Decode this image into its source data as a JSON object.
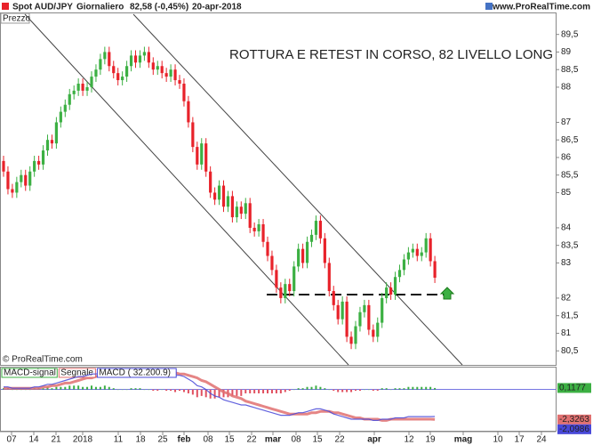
{
  "header": {
    "instrument": "Spot AUD/JPY",
    "period": "Giornaliero",
    "last": "82,58 (-0,45%)",
    "date": "20-apr-2018",
    "site": "www.ProRealTime.com",
    "copyright": "© ProRealTime.com"
  },
  "chart_data": [
    {
      "type": "candlestick",
      "label": "Prezzo",
      "annotation": "ROTTURA E RETEST IN CORSO, 82 LIVELLO LONG",
      "up_color": "#3cb043",
      "down_color": "#e8222a",
      "ylim": [
        80.1,
        90.1
      ],
      "yticks": [
        {
          "value": 80.5,
          "label": "80,5"
        },
        81,
        {
          "value": 81.5,
          "label": "81,5"
        },
        82,
        83,
        {
          "value": 83.5,
          "label": "83,5"
        },
        84,
        85,
        {
          "value": 85.5,
          "label": "85,5"
        },
        86,
        {
          "value": 86.5,
          "label": "86,5"
        },
        87,
        88,
        {
          "value": 88.5,
          "label": "88,5"
        },
        89,
        {
          "value": 89.5,
          "label": "89,5"
        }
      ],
      "xtick_labels": [
        "07",
        "14",
        "21",
        "2018",
        "11",
        "18",
        "25",
        "feb",
        "08",
        "15",
        "22",
        "mar",
        "08",
        "15",
        "22",
        "apr",
        "12",
        "19",
        "mag",
        "10",
        "17",
        "24"
      ],
      "open": [
        85.9,
        85.6,
        85.1,
        85.0,
        85.3,
        85.5,
        85.2,
        85.6,
        85.9,
        85.8,
        86.2,
        86.5,
        86.4,
        87.0,
        87.3,
        87.5,
        87.8,
        87.9,
        88.1,
        87.9,
        88.0,
        88.3,
        88.5,
        88.8,
        89.0,
        88.6,
        88.4,
        88.2,
        88.3,
        88.6,
        88.9,
        88.7,
        88.9,
        89.0,
        88.7,
        88.5,
        88.6,
        88.4,
        88.3,
        88.5,
        88.2,
        88.1,
        87.6,
        87.0,
        86.3,
        85.8,
        86.4,
        85.6,
        85.0,
        84.8,
        85.2,
        84.6,
        84.9,
        84.3,
        84.6,
        84.4,
        84.7,
        84.0,
        83.9,
        84.1,
        83.6,
        83.2,
        82.8,
        82.3,
        82.0,
        82.4,
        82.2,
        82.9,
        83.4,
        83.0,
        83.6,
        83.8,
        84.2,
        83.7,
        83.0,
        82.2,
        81.8,
        81.4,
        81.9,
        80.9,
        80.7,
        81.2,
        81.6,
        81.8,
        81.1,
        80.9,
        81.3,
        82.0,
        82.3,
        82.1,
        82.6,
        82.8,
        83.1,
        83.3,
        83.4,
        83.2,
        83.3,
        83.7,
        83.05
      ],
      "high": [
        86.05,
        85.75,
        85.25,
        85.45,
        85.65,
        85.65,
        85.75,
        86.05,
        86.05,
        86.35,
        86.65,
        86.65,
        87.15,
        87.45,
        87.65,
        87.95,
        88.05,
        88.25,
        88.25,
        88.15,
        88.45,
        88.65,
        88.95,
        89.15,
        89.15,
        88.75,
        88.55,
        88.45,
        88.75,
        89.05,
        89.05,
        89.05,
        89.15,
        89.15,
        88.85,
        88.75,
        88.75,
        88.55,
        88.65,
        88.65,
        88.35,
        88.25,
        87.75,
        87.15,
        86.45,
        86.55,
        86.55,
        85.75,
        85.15,
        85.35,
        85.35,
        85.05,
        85.05,
        84.75,
        84.75,
        84.85,
        84.85,
        84.15,
        84.25,
        84.25,
        83.75,
        83.35,
        82.95,
        82.45,
        82.55,
        82.55,
        83.05,
        83.55,
        83.55,
        83.75,
        83.95,
        84.35,
        84.35,
        83.85,
        83.15,
        82.35,
        81.95,
        82.05,
        82.05,
        81.05,
        81.35,
        81.75,
        81.95,
        81.95,
        81.25,
        81.45,
        82.15,
        82.45,
        82.45,
        82.75,
        82.95,
        83.25,
        83.45,
        83.55,
        83.55,
        83.45,
        83.85,
        83.85,
        83.2
      ],
      "low": [
        85.45,
        84.95,
        84.85,
        84.85,
        85.15,
        85.05,
        85.05,
        85.45,
        85.65,
        85.65,
        86.05,
        86.25,
        86.25,
        86.85,
        87.15,
        87.35,
        87.65,
        87.75,
        87.75,
        87.75,
        87.85,
        88.15,
        88.35,
        88.65,
        88.45,
        88.25,
        88.05,
        88.05,
        88.15,
        88.45,
        88.55,
        88.55,
        88.75,
        88.55,
        88.35,
        88.35,
        88.25,
        88.15,
        88.15,
        88.05,
        87.95,
        87.45,
        86.85,
        86.15,
        85.65,
        85.65,
        85.45,
        84.85,
        84.65,
        84.65,
        84.45,
        84.45,
        84.15,
        84.15,
        84.25,
        84.25,
        83.85,
        83.75,
        83.75,
        83.45,
        83.05,
        82.65,
        82.15,
        81.85,
        81.85,
        82.05,
        82.05,
        82.75,
        82.85,
        82.85,
        83.45,
        83.65,
        83.55,
        82.85,
        82.05,
        81.65,
        81.25,
        81.25,
        80.75,
        80.55,
        80.55,
        81.05,
        81.45,
        80.95,
        80.75,
        80.75,
        81.15,
        81.85,
        81.95,
        81.95,
        82.45,
        82.65,
        82.95,
        83.15,
        83.05,
        83.05,
        83.15,
        82.9,
        82.43
      ],
      "close": [
        85.6,
        85.1,
        85.0,
        85.3,
        85.5,
        85.2,
        85.6,
        85.9,
        85.8,
        86.2,
        86.5,
        86.4,
        87.0,
        87.3,
        87.5,
        87.8,
        87.9,
        88.1,
        87.9,
        88.0,
        88.3,
        88.5,
        88.8,
        89.0,
        88.6,
        88.4,
        88.2,
        88.3,
        88.6,
        88.9,
        88.7,
        88.9,
        89.0,
        88.7,
        88.5,
        88.6,
        88.4,
        88.3,
        88.5,
        88.2,
        88.1,
        87.6,
        87.0,
        86.3,
        85.8,
        86.4,
        85.6,
        85.0,
        84.8,
        85.2,
        84.6,
        84.9,
        84.3,
        84.6,
        84.4,
        84.7,
        84.0,
        83.9,
        84.1,
        83.6,
        83.2,
        82.8,
        82.3,
        82.0,
        82.4,
        82.2,
        82.9,
        83.4,
        83.0,
        83.6,
        83.8,
        84.2,
        83.7,
        83.0,
        82.2,
        81.8,
        81.4,
        81.9,
        80.9,
        80.7,
        81.2,
        81.6,
        81.8,
        81.1,
        80.9,
        81.3,
        82.0,
        82.3,
        82.1,
        82.6,
        82.8,
        83.1,
        83.3,
        83.4,
        83.2,
        83.3,
        83.7,
        83.05,
        82.58
      ]
    },
    {
      "type": "macd",
      "ylim": [
        -3.2,
        1.7
      ],
      "series": [
        {
          "name": "MACD-signal",
          "color": "#3cb043",
          "negative_color": "#e05060",
          "style": "histogram",
          "values": [
            0.1,
            0.1,
            0,
            0,
            0,
            0,
            0,
            0.1,
            0.1,
            0.1,
            0.2,
            0.1,
            0.2,
            0.2,
            0.2,
            0.3,
            0.3,
            0.3,
            0.2,
            0.2,
            0.3,
            0.2,
            0.2,
            0.3,
            0.2,
            0.1,
            0,
            0,
            0,
            0.1,
            0.1,
            0.1,
            0,
            0,
            -0.1,
            -0.1,
            0,
            -0.1,
            -0.1,
            -0.2,
            -0.1,
            -0.2,
            -0.3,
            -0.4,
            -0.6,
            -0.5,
            -0.6,
            -0.7,
            -0.7,
            -0.6,
            -0.6,
            -0.6,
            -0.5,
            -0.5,
            -0.5,
            -0.3,
            -0.3,
            -0.3,
            -0.3,
            -0.3,
            -0.3,
            -0.3,
            -0.3,
            -0.3,
            -0.2,
            -0.1,
            0,
            0.1,
            0.1,
            0.2,
            0.2,
            0.3,
            0.2,
            0.1,
            0,
            -0.1,
            -0.2,
            -0.2,
            -0.2,
            -0.2,
            -0.1,
            -0.1,
            0,
            0,
            -0.1,
            -0.1,
            0.1,
            0.1,
            0,
            0.1,
            0.1,
            0.1,
            0.2,
            0.2,
            0.2,
            0.2,
            0.2,
            0.2,
            0.1177
          ],
          "last": {
            "value": 0.1177,
            "label": "0,1177"
          }
        },
        {
          "name": "Segnale",
          "color": "#e07070",
          "style": "line",
          "values": [
            0.1,
            0.1,
            0.1,
            0.1,
            0.1,
            0.1,
            0.1,
            0.1,
            0.1,
            0.2,
            0.2,
            0.3,
            0.3,
            0.4,
            0.5,
            0.5,
            0.6,
            0.7,
            0.8,
            0.9,
            0.9,
            1.0,
            1.1,
            1.1,
            1.2,
            1.3,
            1.3,
            1.3,
            1.3,
            1.3,
            1.3,
            1.3,
            1.4,
            1.4,
            1.4,
            1.4,
            1.3,
            1.3,
            1.3,
            1.3,
            1.2,
            1.2,
            1.1,
            1.0,
            0.9,
            0.7,
            0.6,
            0.4,
            0.2,
            0.0,
            -0.2,
            -0.3,
            -0.5,
            -0.6,
            -0.7,
            -0.9,
            -1.0,
            -1.1,
            -1.2,
            -1.3,
            -1.4,
            -1.5,
            -1.6,
            -1.7,
            -1.8,
            -1.9,
            -1.9,
            -1.9,
            -1.9,
            -1.9,
            -1.8,
            -1.8,
            -1.7,
            -1.7,
            -1.7,
            -1.8,
            -1.8,
            -1.9,
            -2.0,
            -2.1,
            -2.2,
            -2.2,
            -2.3,
            -2.3,
            -2.3,
            -2.3,
            -2.4,
            -2.4,
            -2.3,
            -2.3,
            -2.3,
            -2.3,
            -2.3,
            -2.3,
            -2.3,
            -2.3,
            -2.3,
            -2.3,
            -2.3263
          ],
          "last": {
            "value": -2.3263,
            "label": "-2,3263"
          }
        },
        {
          "name": "MACD ( 32.200.9)",
          "color": "#4848d8",
          "style": "line",
          "values": [
            0.2,
            0.2,
            0.1,
            0.1,
            0.1,
            0.1,
            0.1,
            0.2,
            0.2,
            0.3,
            0.4,
            0.4,
            0.5,
            0.6,
            0.7,
            0.8,
            0.9,
            1.0,
            1.0,
            1.1,
            1.2,
            1.2,
            1.3,
            1.4,
            1.4,
            1.4,
            1.3,
            1.3,
            1.3,
            1.4,
            1.4,
            1.4,
            1.4,
            1.4,
            1.3,
            1.3,
            1.3,
            1.2,
            1.2,
            1.1,
            1.1,
            1.0,
            0.8,
            0.6,
            0.3,
            0.2,
            0.0,
            -0.3,
            -0.5,
            -0.6,
            -0.8,
            -0.9,
            -1.0,
            -1.1,
            -1.2,
            -1.2,
            -1.3,
            -1.4,
            -1.5,
            -1.6,
            -1.7,
            -1.8,
            -1.9,
            -2.0,
            -2.0,
            -2.0,
            -1.9,
            -1.8,
            -1.8,
            -1.7,
            -1.6,
            -1.5,
            -1.5,
            -1.6,
            -1.7,
            -1.9,
            -2.0,
            -2.1,
            -2.2,
            -2.3,
            -2.3,
            -2.3,
            -2.3,
            -2.3,
            -2.4,
            -2.4,
            -2.3,
            -2.3,
            -2.3,
            -2.2,
            -2.2,
            -2.2,
            -2.1,
            -2.1,
            -2.1,
            -2.1,
            -2.1,
            -2.1,
            -2.0986
          ],
          "last": {
            "value": -2.0986,
            "label": "-2,0986"
          }
        }
      ]
    }
  ]
}
